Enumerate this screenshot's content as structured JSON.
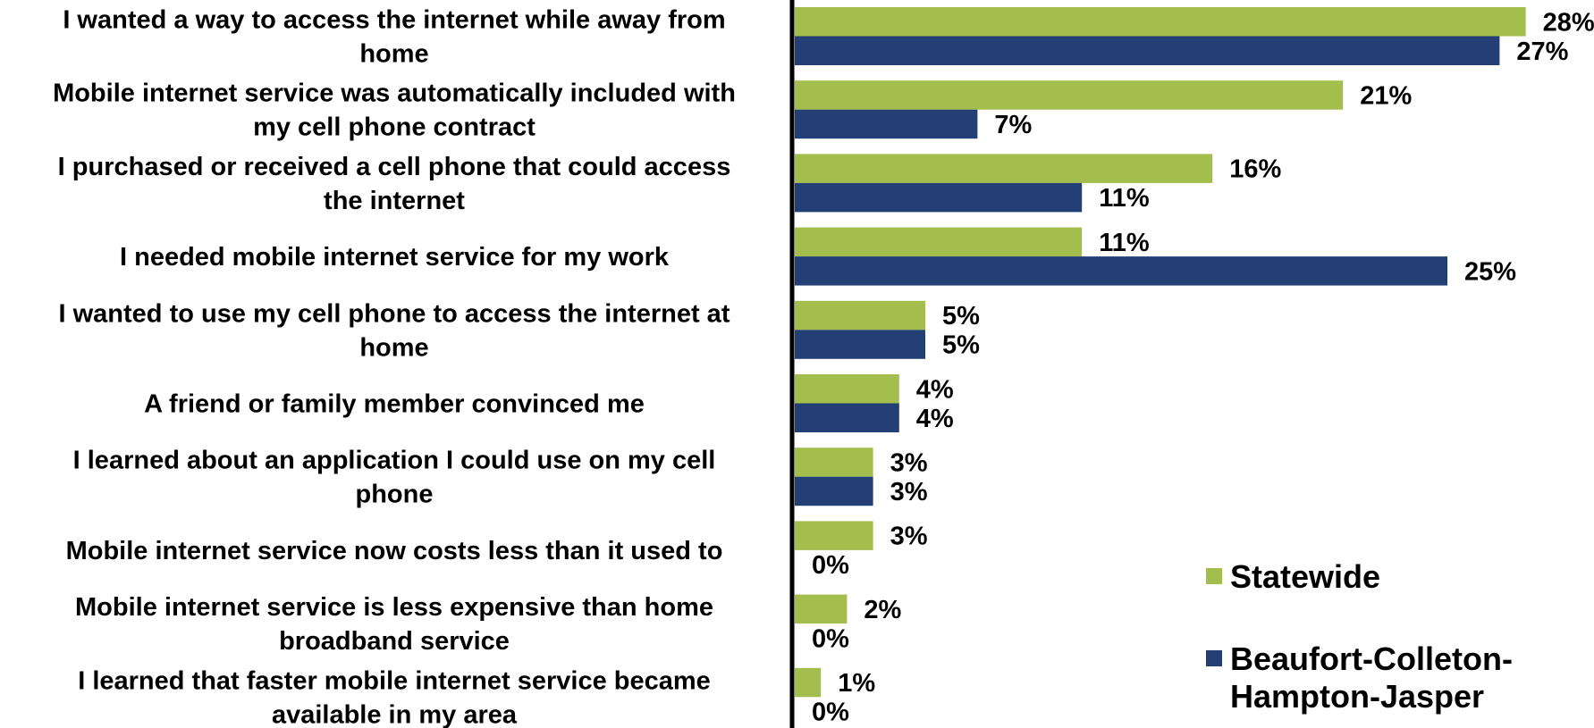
{
  "chart_data": {
    "type": "bar",
    "orientation": "horizontal",
    "categories": [
      [
        "I wanted a way to access the internet while away from",
        "home"
      ],
      [
        "Mobile internet service was automatically included with",
        "my cell phone contract"
      ],
      [
        "I purchased or received a cell phone that could access",
        "the internet"
      ],
      [
        "I needed mobile internet service for my work"
      ],
      [
        "I wanted to use my cell phone to access the internet at",
        "home"
      ],
      [
        "A friend or family member convinced me"
      ],
      [
        "I learned about an application I could use on my cell",
        "phone"
      ],
      [
        "Mobile internet service now costs less than it used to"
      ],
      [
        "Mobile internet service is less expensive than home",
        "broadband service"
      ],
      [
        "I learned that faster mobile internet service became",
        "available in my area"
      ]
    ],
    "series": [
      {
        "name": "Statewide",
        "color": "#a3be4c",
        "values": [
          28,
          21,
          16,
          11,
          5,
          4,
          3,
          3,
          2,
          1
        ]
      },
      {
        "name_lines": [
          "Beaufort-Colleton-",
          "Hampton-Jasper"
        ],
        "color": "#243f75",
        "values": [
          27,
          7,
          11,
          25,
          5,
          4,
          3,
          0,
          0,
          0
        ]
      }
    ],
    "value_suffix": "%",
    "xlim": [
      0,
      30
    ],
    "grid": false,
    "legend_position": "bottom-right"
  }
}
